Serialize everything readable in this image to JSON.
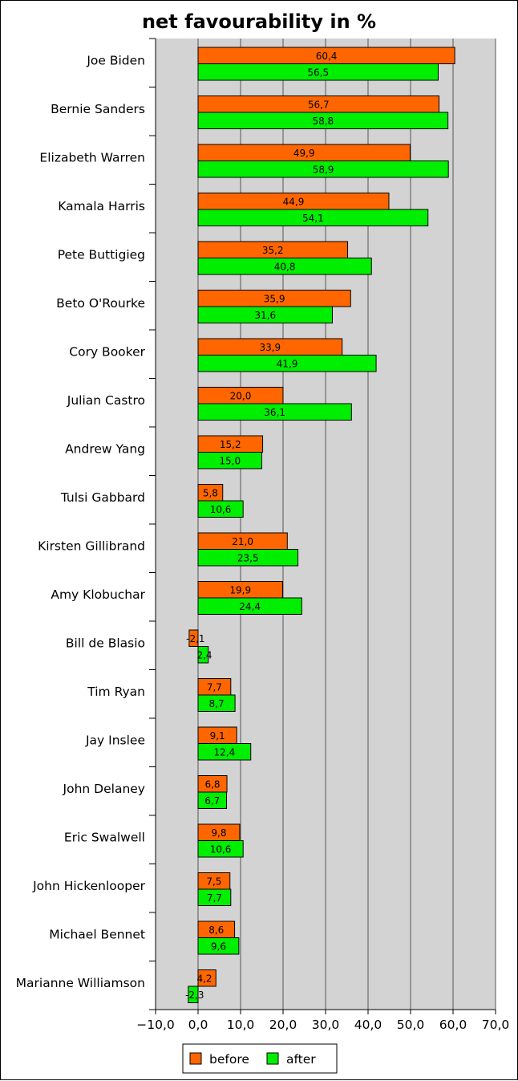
{
  "chart_data": {
    "type": "bar",
    "orientation": "horizontal",
    "title": "net favourability in %",
    "xlabel": "",
    "ylabel": "",
    "xlim": [
      -10,
      70
    ],
    "x_ticks": [
      -10,
      0,
      10,
      20,
      30,
      40,
      50,
      60,
      70
    ],
    "x_tick_labels": [
      "−10,0",
      "0,0",
      "10,0",
      "20,0",
      "30,0",
      "40,0",
      "50,0",
      "60,0",
      "70,0"
    ],
    "grid": "vertical",
    "legend_position": "bottom-center",
    "categories": [
      "Joe Biden",
      "Bernie Sanders",
      "Elizabeth Warren",
      "Kamala Harris",
      "Pete Buttigieg",
      "Beto O'Rourke",
      "Cory Booker",
      "Julian Castro",
      "Andrew Yang",
      "Tulsi Gabbard",
      "Kirsten Gillibrand",
      "Amy Klobuchar",
      "Bill de Blasio",
      "Tim Ryan",
      "Jay Inslee",
      "John Delaney",
      "Eric Swalwell",
      "John Hickenlooper",
      "Michael Bennet",
      "Marianne Williamson"
    ],
    "series": [
      {
        "name": "before",
        "color": "#ff6600",
        "values": [
          60.4,
          56.7,
          49.9,
          44.9,
          35.2,
          35.9,
          33.9,
          20.0,
          15.2,
          5.8,
          21.0,
          19.9,
          -2.1,
          7.7,
          9.1,
          6.8,
          9.8,
          7.5,
          8.6,
          4.2
        ],
        "labels": [
          "60,4",
          "56,7",
          "49,9",
          "44,9",
          "35,2",
          "35,9",
          "33,9",
          "20,0",
          "15,2",
          "5,8",
          "21,0",
          "19,9",
          "-2,1",
          "7,7",
          "9,1",
          "6,8",
          "9,8",
          "7,5",
          "8,6",
          "4,2"
        ]
      },
      {
        "name": "after",
        "color": "#00ee00",
        "values": [
          56.5,
          58.8,
          58.9,
          54.1,
          40.8,
          31.6,
          41.9,
          36.1,
          15.0,
          10.6,
          23.5,
          24.4,
          2.4,
          8.7,
          12.4,
          6.7,
          10.6,
          7.7,
          9.6,
          -2.3
        ],
        "labels": [
          "56,5",
          "58,8",
          "58,9",
          "54,1",
          "40,8",
          "31,6",
          "41,9",
          "36,1",
          "15,0",
          "10,6",
          "23,5",
          "24,4",
          "2,4",
          "8,7",
          "12,4",
          "6,7",
          "10,6",
          "7,7",
          "9,6",
          "-2,3"
        ]
      }
    ],
    "plot_background": "#d3d3d3"
  }
}
